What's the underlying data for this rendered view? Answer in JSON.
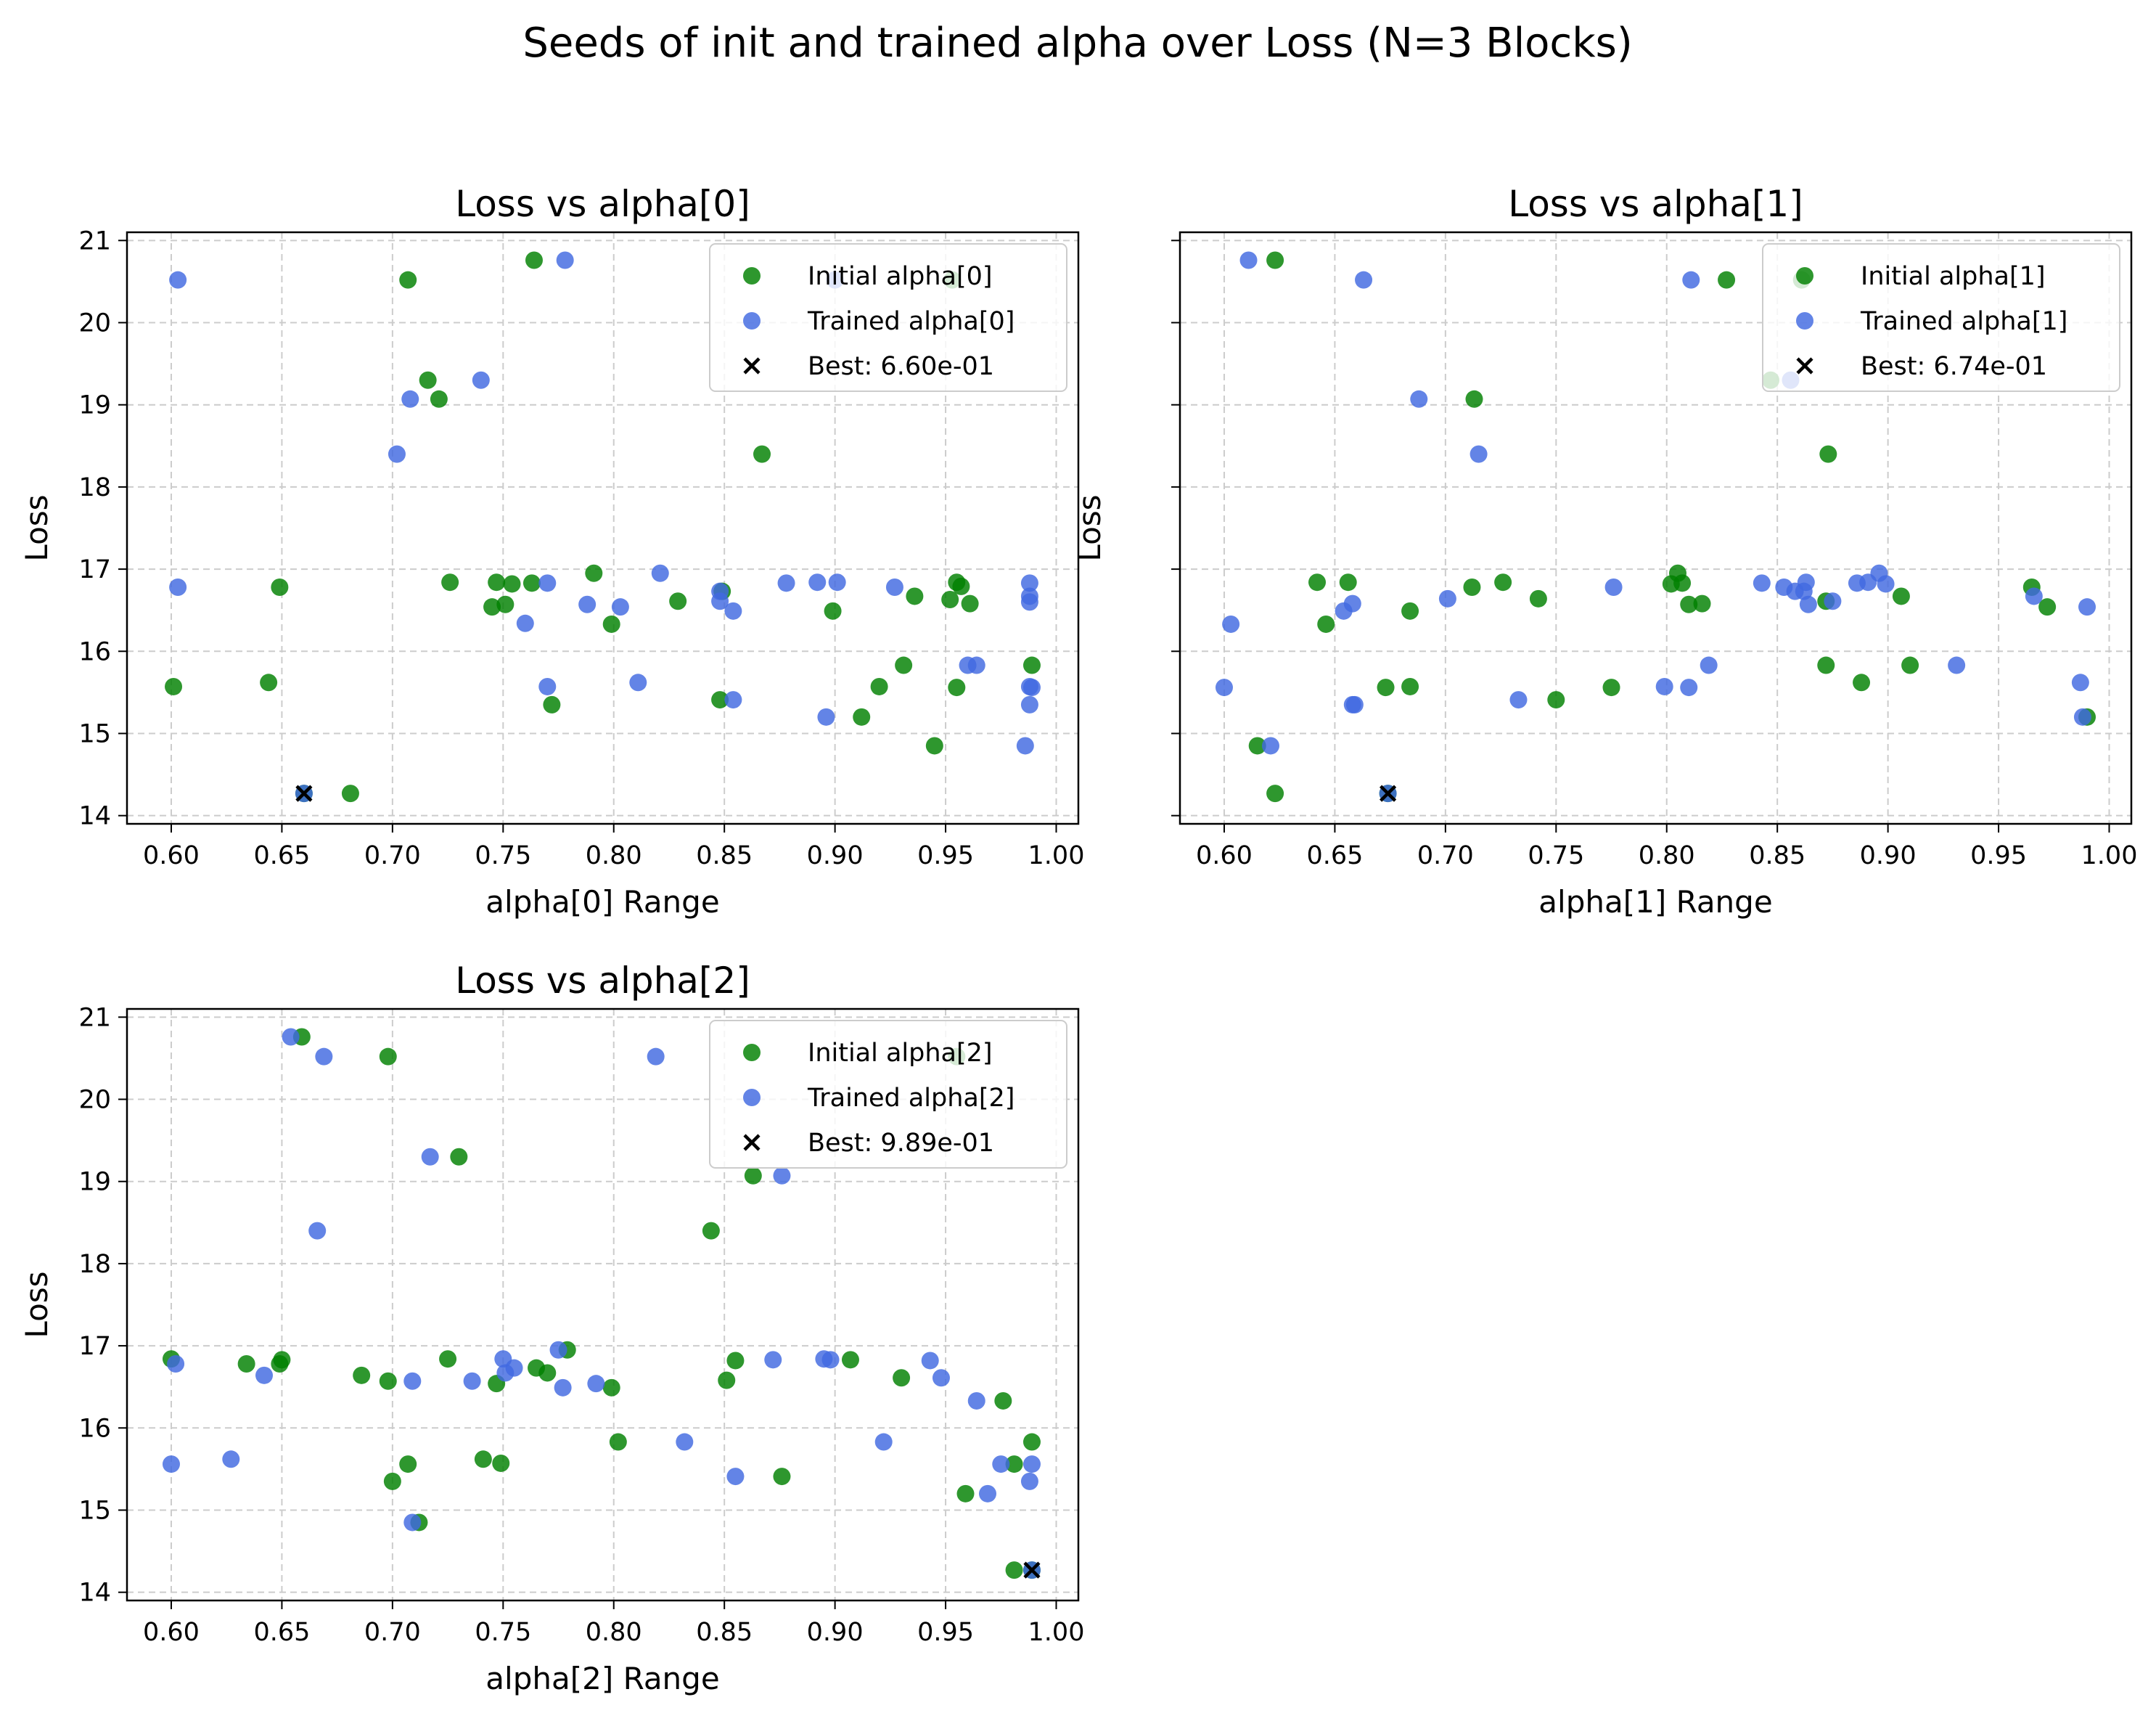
{
  "figure": {
    "title": "Seeds of init and trained alpha over Loss (N=3 Blocks)"
  },
  "colors": {
    "initial": "#008000",
    "trained": "#4169e1",
    "best": "#000000",
    "grid": "#cccccc",
    "axis": "#000000"
  },
  "chart_data": [
    {
      "type": "scatter",
      "title": "Loss vs alpha[0]",
      "xlabel": "alpha[0] Range",
      "ylabel": "Loss",
      "xlim": [
        0.58,
        1.01
      ],
      "ylim": [
        13.9,
        21.1
      ],
      "xticks": [
        0.6,
        0.65,
        0.7,
        0.75,
        0.8,
        0.85,
        0.9,
        0.95,
        1.0
      ],
      "xtick_labels": [
        "0.60",
        "0.65",
        "0.70",
        "0.75",
        "0.80",
        "0.85",
        "0.90",
        "0.95",
        "1.00"
      ],
      "yticks": [
        14,
        15,
        16,
        17,
        18,
        19,
        20,
        21
      ],
      "ytick_labels": [
        "14",
        "15",
        "16",
        "17",
        "18",
        "19",
        "20",
        "21"
      ],
      "grid": true,
      "legend_position": "top-right",
      "series": [
        {
          "name": "Initial alpha[0]",
          "points": [
            [
              0.707,
              20.52
            ],
            [
              0.764,
              20.76
            ],
            [
              0.953,
              20.52
            ],
            [
              0.716,
              19.3
            ],
            [
              0.721,
              19.07
            ],
            [
              0.867,
              18.4
            ],
            [
              0.649,
              16.78
            ],
            [
              0.726,
              16.84
            ],
            [
              0.745,
              16.54
            ],
            [
              0.747,
              16.84
            ],
            [
              0.751,
              16.57
            ],
            [
              0.754,
              16.82
            ],
            [
              0.763,
              16.83
            ],
            [
              0.791,
              16.95
            ],
            [
              0.799,
              16.33
            ],
            [
              0.829,
              16.61
            ],
            [
              0.849,
              16.73
            ],
            [
              0.899,
              16.49
            ],
            [
              0.936,
              16.67
            ],
            [
              0.952,
              16.63
            ],
            [
              0.955,
              16.84
            ],
            [
              0.957,
              16.79
            ],
            [
              0.961,
              16.58
            ],
            [
              0.601,
              15.57
            ],
            [
              0.644,
              15.62
            ],
            [
              0.772,
              15.35
            ],
            [
              0.848,
              15.41
            ],
            [
              0.912,
              15.2
            ],
            [
              0.92,
              15.57
            ],
            [
              0.931,
              15.83
            ],
            [
              0.955,
              15.56
            ],
            [
              0.989,
              15.83
            ],
            [
              0.945,
              14.85
            ],
            [
              0.681,
              14.27
            ],
            [
              0.66,
              14.27
            ]
          ]
        },
        {
          "name": "Trained alpha[0]",
          "points": [
            [
              0.603,
              20.52
            ],
            [
              0.778,
              20.76
            ],
            [
              0.9,
              20.52
            ],
            [
              0.74,
              19.3
            ],
            [
              0.708,
              19.07
            ],
            [
              0.702,
              18.4
            ],
            [
              0.603,
              16.78
            ],
            [
              0.77,
              16.83
            ],
            [
              0.788,
              16.57
            ],
            [
              0.803,
              16.54
            ],
            [
              0.821,
              16.95
            ],
            [
              0.76,
              16.34
            ],
            [
              0.848,
              16.61
            ],
            [
              0.848,
              16.73
            ],
            [
              0.854,
              16.49
            ],
            [
              0.878,
              16.83
            ],
            [
              0.892,
              16.84
            ],
            [
              0.901,
              16.84
            ],
            [
              0.927,
              16.78
            ],
            [
              0.988,
              16.83
            ],
            [
              0.988,
              16.67
            ],
            [
              0.988,
              16.6
            ],
            [
              0.77,
              15.57
            ],
            [
              0.811,
              15.62
            ],
            [
              0.854,
              15.41
            ],
            [
              0.896,
              15.2
            ],
            [
              0.96,
              15.83
            ],
            [
              0.964,
              15.83
            ],
            [
              0.988,
              15.57
            ],
            [
              0.989,
              15.56
            ],
            [
              0.988,
              15.35
            ],
            [
              0.986,
              14.85
            ],
            [
              0.66,
              14.27
            ]
          ]
        },
        {
          "name": "Best: 6.60e-01",
          "marker": "x",
          "points": [
            [
              0.66,
              14.27
            ]
          ]
        }
      ]
    },
    {
      "type": "scatter",
      "title": "Loss vs alpha[1]",
      "xlabel": "alpha[1] Range",
      "ylabel": "Loss",
      "xlim": [
        0.58,
        1.01
      ],
      "ylim": [
        13.9,
        21.1
      ],
      "xticks": [
        0.6,
        0.65,
        0.7,
        0.75,
        0.8,
        0.85,
        0.9,
        0.95,
        1.0
      ],
      "xtick_labels": [
        "0.60",
        "0.65",
        "0.70",
        "0.75",
        "0.80",
        "0.85",
        "0.90",
        "0.95",
        "1.00"
      ],
      "yticks": [
        14,
        15,
        16,
        17,
        18,
        19,
        20,
        21
      ],
      "ytick_labels": [],
      "grid": true,
      "legend_position": "top-right",
      "series": [
        {
          "name": "Initial alpha[1]",
          "points": [
            [
              0.623,
              20.76
            ],
            [
              0.827,
              20.52
            ],
            [
              0.861,
              20.52
            ],
            [
              0.847,
              19.3
            ],
            [
              0.713,
              19.07
            ],
            [
              0.873,
              18.4
            ],
            [
              0.642,
              16.84
            ],
            [
              0.656,
              16.84
            ],
            [
              0.646,
              16.33
            ],
            [
              0.684,
              16.49
            ],
            [
              0.712,
              16.78
            ],
            [
              0.726,
              16.84
            ],
            [
              0.742,
              16.64
            ],
            [
              0.802,
              16.82
            ],
            [
              0.805,
              16.95
            ],
            [
              0.807,
              16.83
            ],
            [
              0.81,
              16.57
            ],
            [
              0.816,
              16.58
            ],
            [
              0.872,
              16.61
            ],
            [
              0.906,
              16.67
            ],
            [
              0.965,
              16.78
            ],
            [
              0.972,
              16.54
            ],
            [
              0.673,
              15.56
            ],
            [
              0.684,
              15.57
            ],
            [
              0.75,
              15.41
            ],
            [
              0.775,
              15.56
            ],
            [
              0.872,
              15.83
            ],
            [
              0.888,
              15.62
            ],
            [
              0.91,
              15.83
            ],
            [
              0.99,
              15.2
            ],
            [
              0.615,
              14.85
            ],
            [
              0.623,
              14.27
            ],
            [
              0.674,
              14.27
            ]
          ]
        },
        {
          "name": "Trained alpha[1]",
          "points": [
            [
              0.611,
              20.76
            ],
            [
              0.663,
              20.52
            ],
            [
              0.811,
              20.52
            ],
            [
              0.856,
              19.3
            ],
            [
              0.688,
              19.07
            ],
            [
              0.715,
              18.4
            ],
            [
              0.603,
              16.33
            ],
            [
              0.654,
              16.49
            ],
            [
              0.658,
              16.58
            ],
            [
              0.701,
              16.64
            ],
            [
              0.776,
              16.78
            ],
            [
              0.843,
              16.83
            ],
            [
              0.853,
              16.78
            ],
            [
              0.858,
              16.73
            ],
            [
              0.862,
              16.73
            ],
            [
              0.863,
              16.84
            ],
            [
              0.864,
              16.57
            ],
            [
              0.875,
              16.61
            ],
            [
              0.886,
              16.83
            ],
            [
              0.891,
              16.84
            ],
            [
              0.896,
              16.95
            ],
            [
              0.899,
              16.82
            ],
            [
              0.966,
              16.67
            ],
            [
              0.99,
              16.54
            ],
            [
              0.6,
              15.56
            ],
            [
              0.658,
              15.35
            ],
            [
              0.659,
              15.35
            ],
            [
              0.733,
              15.41
            ],
            [
              0.799,
              15.57
            ],
            [
              0.81,
              15.56
            ],
            [
              0.819,
              15.83
            ],
            [
              0.931,
              15.83
            ],
            [
              0.987,
              15.62
            ],
            [
              0.988,
              15.2
            ],
            [
              0.621,
              14.85
            ],
            [
              0.674,
              14.27
            ]
          ]
        },
        {
          "name": "Best: 6.74e-01",
          "marker": "x",
          "points": [
            [
              0.674,
              14.27
            ]
          ]
        }
      ]
    },
    {
      "type": "scatter",
      "title": "Loss vs alpha[2]",
      "xlabel": "alpha[2] Range",
      "ylabel": "Loss",
      "xlim": [
        0.58,
        1.01
      ],
      "ylim": [
        13.9,
        21.1
      ],
      "xticks": [
        0.6,
        0.65,
        0.7,
        0.75,
        0.8,
        0.85,
        0.9,
        0.95,
        1.0
      ],
      "xtick_labels": [
        "0.60",
        "0.65",
        "0.70",
        "0.75",
        "0.80",
        "0.85",
        "0.90",
        "0.95",
        "1.00"
      ],
      "yticks": [
        14,
        15,
        16,
        17,
        18,
        19,
        20,
        21
      ],
      "ytick_labels": [
        "14",
        "15",
        "16",
        "17",
        "18",
        "19",
        "20",
        "21"
      ],
      "grid": true,
      "legend_position": "top-right",
      "series": [
        {
          "name": "Initial alpha[2]",
          "points": [
            [
              0.659,
              20.76
            ],
            [
              0.698,
              20.52
            ],
            [
              0.955,
              20.52
            ],
            [
              0.73,
              19.3
            ],
            [
              0.863,
              19.07
            ],
            [
              0.844,
              18.4
            ],
            [
              0.6,
              16.84
            ],
            [
              0.634,
              16.78
            ],
            [
              0.649,
              16.78
            ],
            [
              0.65,
              16.83
            ],
            [
              0.686,
              16.64
            ],
            [
              0.698,
              16.57
            ],
            [
              0.725,
              16.84
            ],
            [
              0.747,
              16.54
            ],
            [
              0.765,
              16.73
            ],
            [
              0.77,
              16.67
            ],
            [
              0.779,
              16.95
            ],
            [
              0.799,
              16.49
            ],
            [
              0.851,
              16.58
            ],
            [
              0.855,
              16.82
            ],
            [
              0.907,
              16.83
            ],
            [
              0.93,
              16.61
            ],
            [
              0.976,
              16.33
            ],
            [
              0.802,
              15.83
            ],
            [
              0.989,
              15.83
            ],
            [
              0.741,
              15.62
            ],
            [
              0.707,
              15.56
            ],
            [
              0.749,
              15.57
            ],
            [
              0.981,
              15.56
            ],
            [
              0.7,
              15.35
            ],
            [
              0.876,
              15.41
            ],
            [
              0.959,
              15.2
            ],
            [
              0.712,
              14.85
            ],
            [
              0.981,
              14.27
            ],
            [
              0.989,
              14.27
            ]
          ]
        },
        {
          "name": "Trained alpha[2]",
          "points": [
            [
              0.654,
              20.76
            ],
            [
              0.669,
              20.52
            ],
            [
              0.819,
              20.52
            ],
            [
              0.717,
              19.3
            ],
            [
              0.876,
              19.07
            ],
            [
              0.666,
              18.4
            ],
            [
              0.602,
              16.78
            ],
            [
              0.642,
              16.64
            ],
            [
              0.709,
              16.57
            ],
            [
              0.736,
              16.57
            ],
            [
              0.75,
              16.84
            ],
            [
              0.751,
              16.67
            ],
            [
              0.755,
              16.73
            ],
            [
              0.775,
              16.95
            ],
            [
              0.777,
              16.49
            ],
            [
              0.792,
              16.54
            ],
            [
              0.872,
              16.83
            ],
            [
              0.895,
              16.84
            ],
            [
              0.898,
              16.83
            ],
            [
              0.943,
              16.82
            ],
            [
              0.948,
              16.61
            ],
            [
              0.964,
              16.33
            ],
            [
              0.6,
              15.56
            ],
            [
              0.627,
              15.62
            ],
            [
              0.832,
              15.83
            ],
            [
              0.922,
              15.83
            ],
            [
              0.855,
              15.41
            ],
            [
              0.975,
              15.56
            ],
            [
              0.989,
              15.56
            ],
            [
              0.988,
              15.35
            ],
            [
              0.969,
              15.2
            ],
            [
              0.709,
              14.85
            ],
            [
              0.989,
              14.27
            ]
          ]
        },
        {
          "name": "Best: 9.89e-01",
          "marker": "x",
          "points": [
            [
              0.989,
              14.27
            ]
          ]
        }
      ]
    }
  ]
}
